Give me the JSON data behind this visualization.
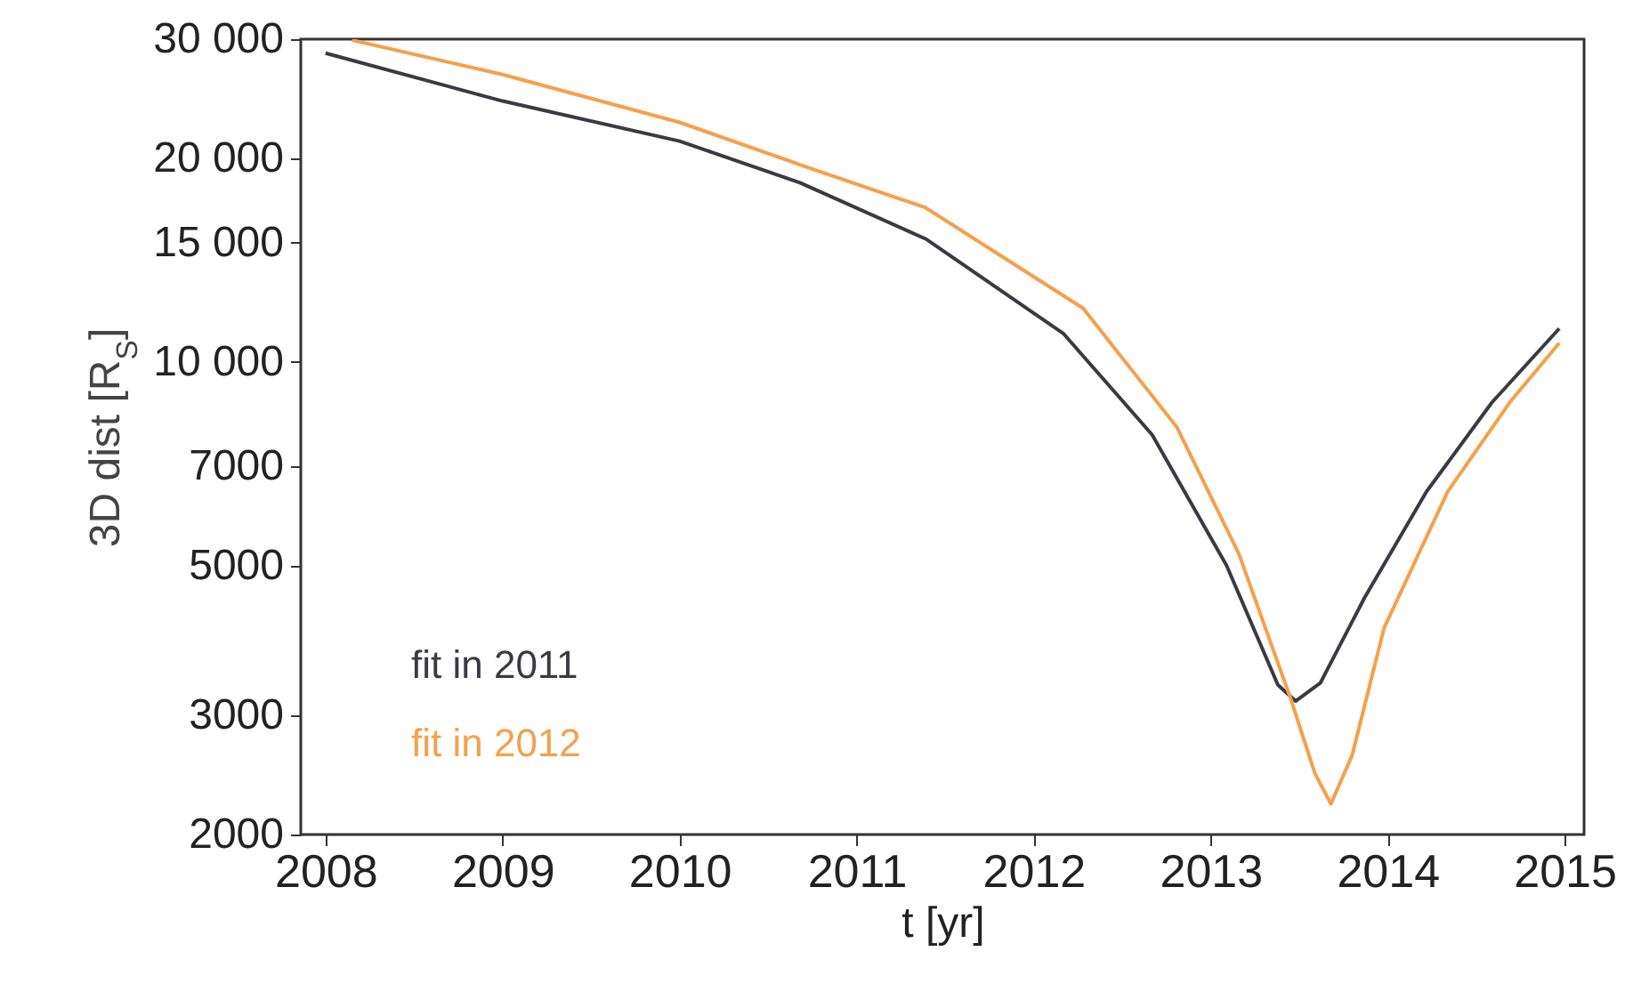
{
  "chart_data": {
    "type": "line",
    "xlabel": "t [yr]",
    "ylabel": "3D dist [R$_{S}$]",
    "xlim": [
      2007.86,
      2015.11
    ],
    "xticks": [
      2008,
      2009,
      2010,
      2011,
      2012,
      2013,
      2014,
      2015
    ],
    "log": true,
    "ylim": [
      2000,
      30000
    ],
    "yticks": [
      2000,
      3000,
      5000,
      7000,
      {
        "value": 10000,
        "label": "10 000"
      },
      {
        "value": 15000,
        "label": "15 000"
      },
      {
        "value": 20000,
        "label": "20 000"
      },
      {
        "value": 30000,
        "label": "30 000"
      }
    ],
    "grid": false,
    "legend": "bottom left",
    "marker": "none",
    "line_style": "solid",
    "series": [
      {
        "name": "fit in 2011",
        "color": "#3a3a44",
        "x": [
          2008.0,
          2009.0,
          2010.0,
          2010.68,
          2011.39,
          2012.17,
          2012.67,
          2013.09,
          2013.38,
          2013.48,
          2013.62,
          2013.87,
          2014.22,
          2014.59,
          2014.97
        ],
        "values": [
          28600,
          24300,
          21200,
          18400,
          15200,
          11000,
          7800,
          5000,
          3330,
          3150,
          3350,
          4480,
          6430,
          8710,
          11200
        ]
      },
      {
        "name": "fit in 2012",
        "color": "#f5a04a",
        "x": [
          2008.15,
          2009.0,
          2010.0,
          2010.77,
          2011.39,
          2012.28,
          2012.81,
          2013.16,
          2013.45,
          2013.59,
          2013.68,
          2013.8,
          2013.98,
          2014.34,
          2014.69,
          2014.97
        ],
        "values": [
          29900,
          26600,
          22600,
          19200,
          16900,
          12000,
          8000,
          5200,
          3190,
          2460,
          2220,
          2620,
          4040,
          6430,
          8710,
          10660
        ]
      }
    ]
  }
}
